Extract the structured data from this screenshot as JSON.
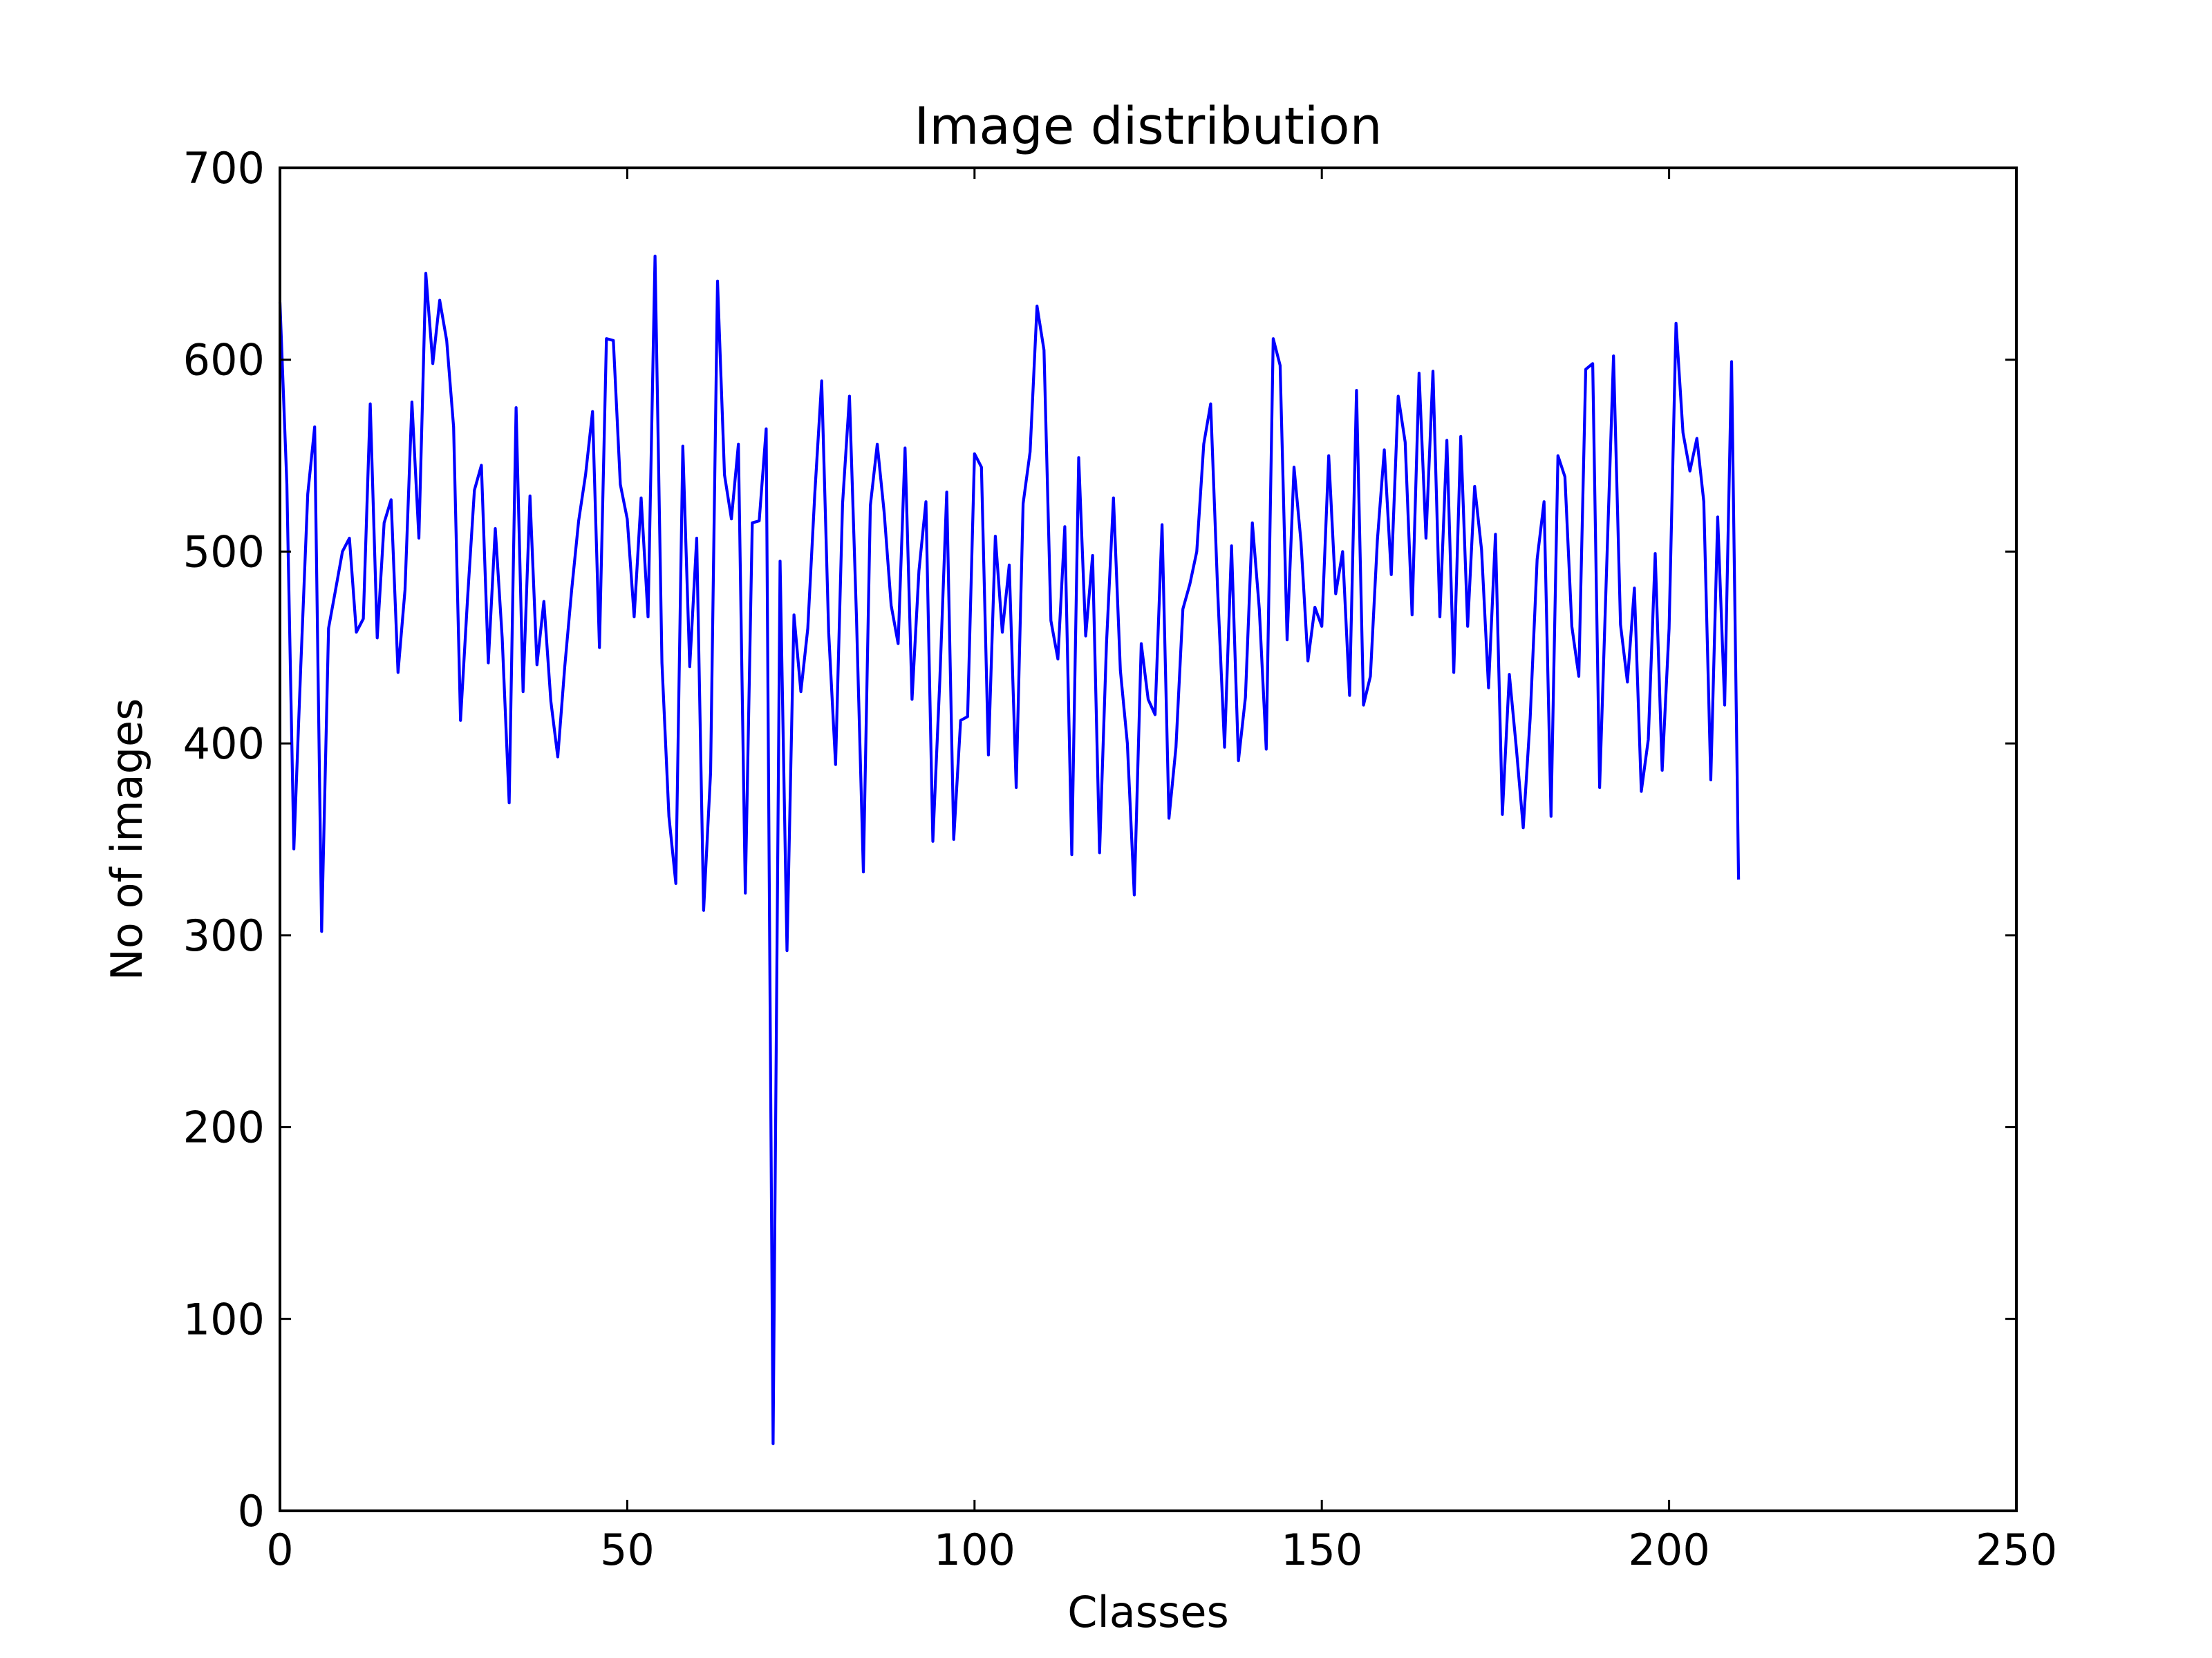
{
  "chart_data": {
    "type": "line",
    "title": "Image distribution",
    "xlabel": "Classes",
    "ylabel": "No of images",
    "xlim": [
      0,
      250
    ],
    "ylim": [
      0,
      700
    ],
    "xticks": [
      0,
      50,
      100,
      150,
      200,
      250
    ],
    "yticks": [
      0,
      100,
      200,
      300,
      400,
      500,
      600,
      700
    ],
    "xtick_labels": [
      "0",
      "50",
      "100",
      "150",
      "200",
      "250"
    ],
    "ytick_labels": [
      "0",
      "100",
      "200",
      "300",
      "400",
      "500",
      "600",
      "700"
    ],
    "grid": false,
    "legend": "none",
    "series": [
      {
        "color": "#0000ff",
        "x": [
          0,
          1,
          2,
          3,
          4,
          5,
          6,
          7,
          8,
          9,
          10,
          11,
          12,
          13,
          14,
          15,
          16,
          17,
          18,
          19,
          20,
          21,
          22,
          23,
          24,
          25,
          26,
          27,
          28,
          29,
          30,
          31,
          32,
          33,
          34,
          35,
          36,
          37,
          38,
          39,
          40,
          41,
          42,
          43,
          44,
          45,
          46,
          47,
          48,
          49,
          50,
          51,
          52,
          53,
          54,
          55,
          56,
          57,
          58,
          59,
          60,
          61,
          62,
          63,
          64,
          65,
          66,
          67,
          68,
          69,
          70,
          71,
          72,
          73,
          74,
          75,
          76,
          77,
          78,
          79,
          80,
          81,
          82,
          83,
          84,
          85,
          86,
          87,
          88,
          89,
          90,
          91,
          92,
          93,
          94,
          95,
          96,
          97,
          98,
          99,
          100,
          101,
          102,
          103,
          104,
          105,
          106,
          107,
          108,
          109,
          110,
          111,
          112,
          113,
          114,
          115,
          116,
          117,
          118,
          119,
          120,
          121,
          122,
          123,
          124,
          125,
          126,
          127,
          128,
          129,
          130,
          131,
          132,
          133,
          134,
          135,
          136,
          137,
          138,
          139,
          140,
          141,
          142,
          143,
          144,
          145,
          146,
          147,
          148,
          149,
          150,
          151,
          152,
          153,
          154,
          155,
          156,
          157,
          158,
          159,
          160,
          161,
          162,
          163,
          164,
          165,
          166,
          167,
          168,
          169,
          170,
          171,
          172,
          173,
          174,
          175,
          176,
          177,
          178,
          179,
          180,
          181,
          182,
          183,
          184,
          185,
          186,
          187,
          188,
          189,
          190,
          191,
          192,
          193,
          194,
          195,
          196,
          197,
          198,
          199,
          200,
          201,
          202,
          203,
          204,
          205,
          206,
          207,
          208,
          209,
          210
        ],
        "y": [
          630,
          535,
          345,
          440,
          530,
          565,
          302,
          460,
          480,
          500,
          507,
          458,
          465,
          577,
          455,
          515,
          527,
          437,
          480,
          578,
          507,
          645,
          598,
          631,
          610,
          565,
          412,
          475,
          532,
          545,
          442,
          512,
          455,
          369,
          575,
          427,
          529,
          441,
          474,
          422,
          393,
          440,
          480,
          516,
          540,
          573,
          450,
          611,
          610,
          535,
          517,
          466,
          528,
          466,
          654,
          442,
          362,
          327,
          555,
          440,
          507,
          313,
          385,
          641,
          540,
          517,
          556,
          322,
          515,
          516,
          564,
          35,
          495,
          292,
          467,
          427,
          460,
          530,
          589,
          458,
          389,
          525,
          581,
          466,
          333,
          524,
          556,
          520,
          472,
          452,
          554,
          423,
          490,
          526,
          349,
          433,
          531,
          350,
          412,
          414,
          551,
          544,
          394,
          508,
          458,
          493,
          377,
          525,
          552,
          628,
          605,
          464,
          444,
          513,
          342,
          549,
          456,
          498,
          343,
          452,
          528,
          438,
          400,
          321,
          452,
          423,
          415,
          514,
          361,
          398,
          470,
          483,
          500,
          556,
          577,
          480,
          398,
          503,
          391,
          424,
          515,
          470,
          397,
          611,
          597,
          454,
          544,
          505,
          443,
          471,
          461,
          550,
          478,
          500,
          425,
          584,
          420,
          435,
          506,
          553,
          488,
          581,
          557,
          467,
          593,
          507,
          594,
          466,
          558,
          437,
          560,
          461,
          534,
          501,
          429,
          509,
          363,
          436,
          398,
          356,
          413,
          496,
          526,
          362,
          550,
          539,
          461,
          435,
          595,
          598,
          377,
          491,
          602,
          462,
          432,
          481,
          375,
          402,
          499,
          386,
          460,
          619,
          562,
          542,
          559,
          526,
          381,
          518,
          420,
          599,
          329
        ]
      }
    ]
  }
}
